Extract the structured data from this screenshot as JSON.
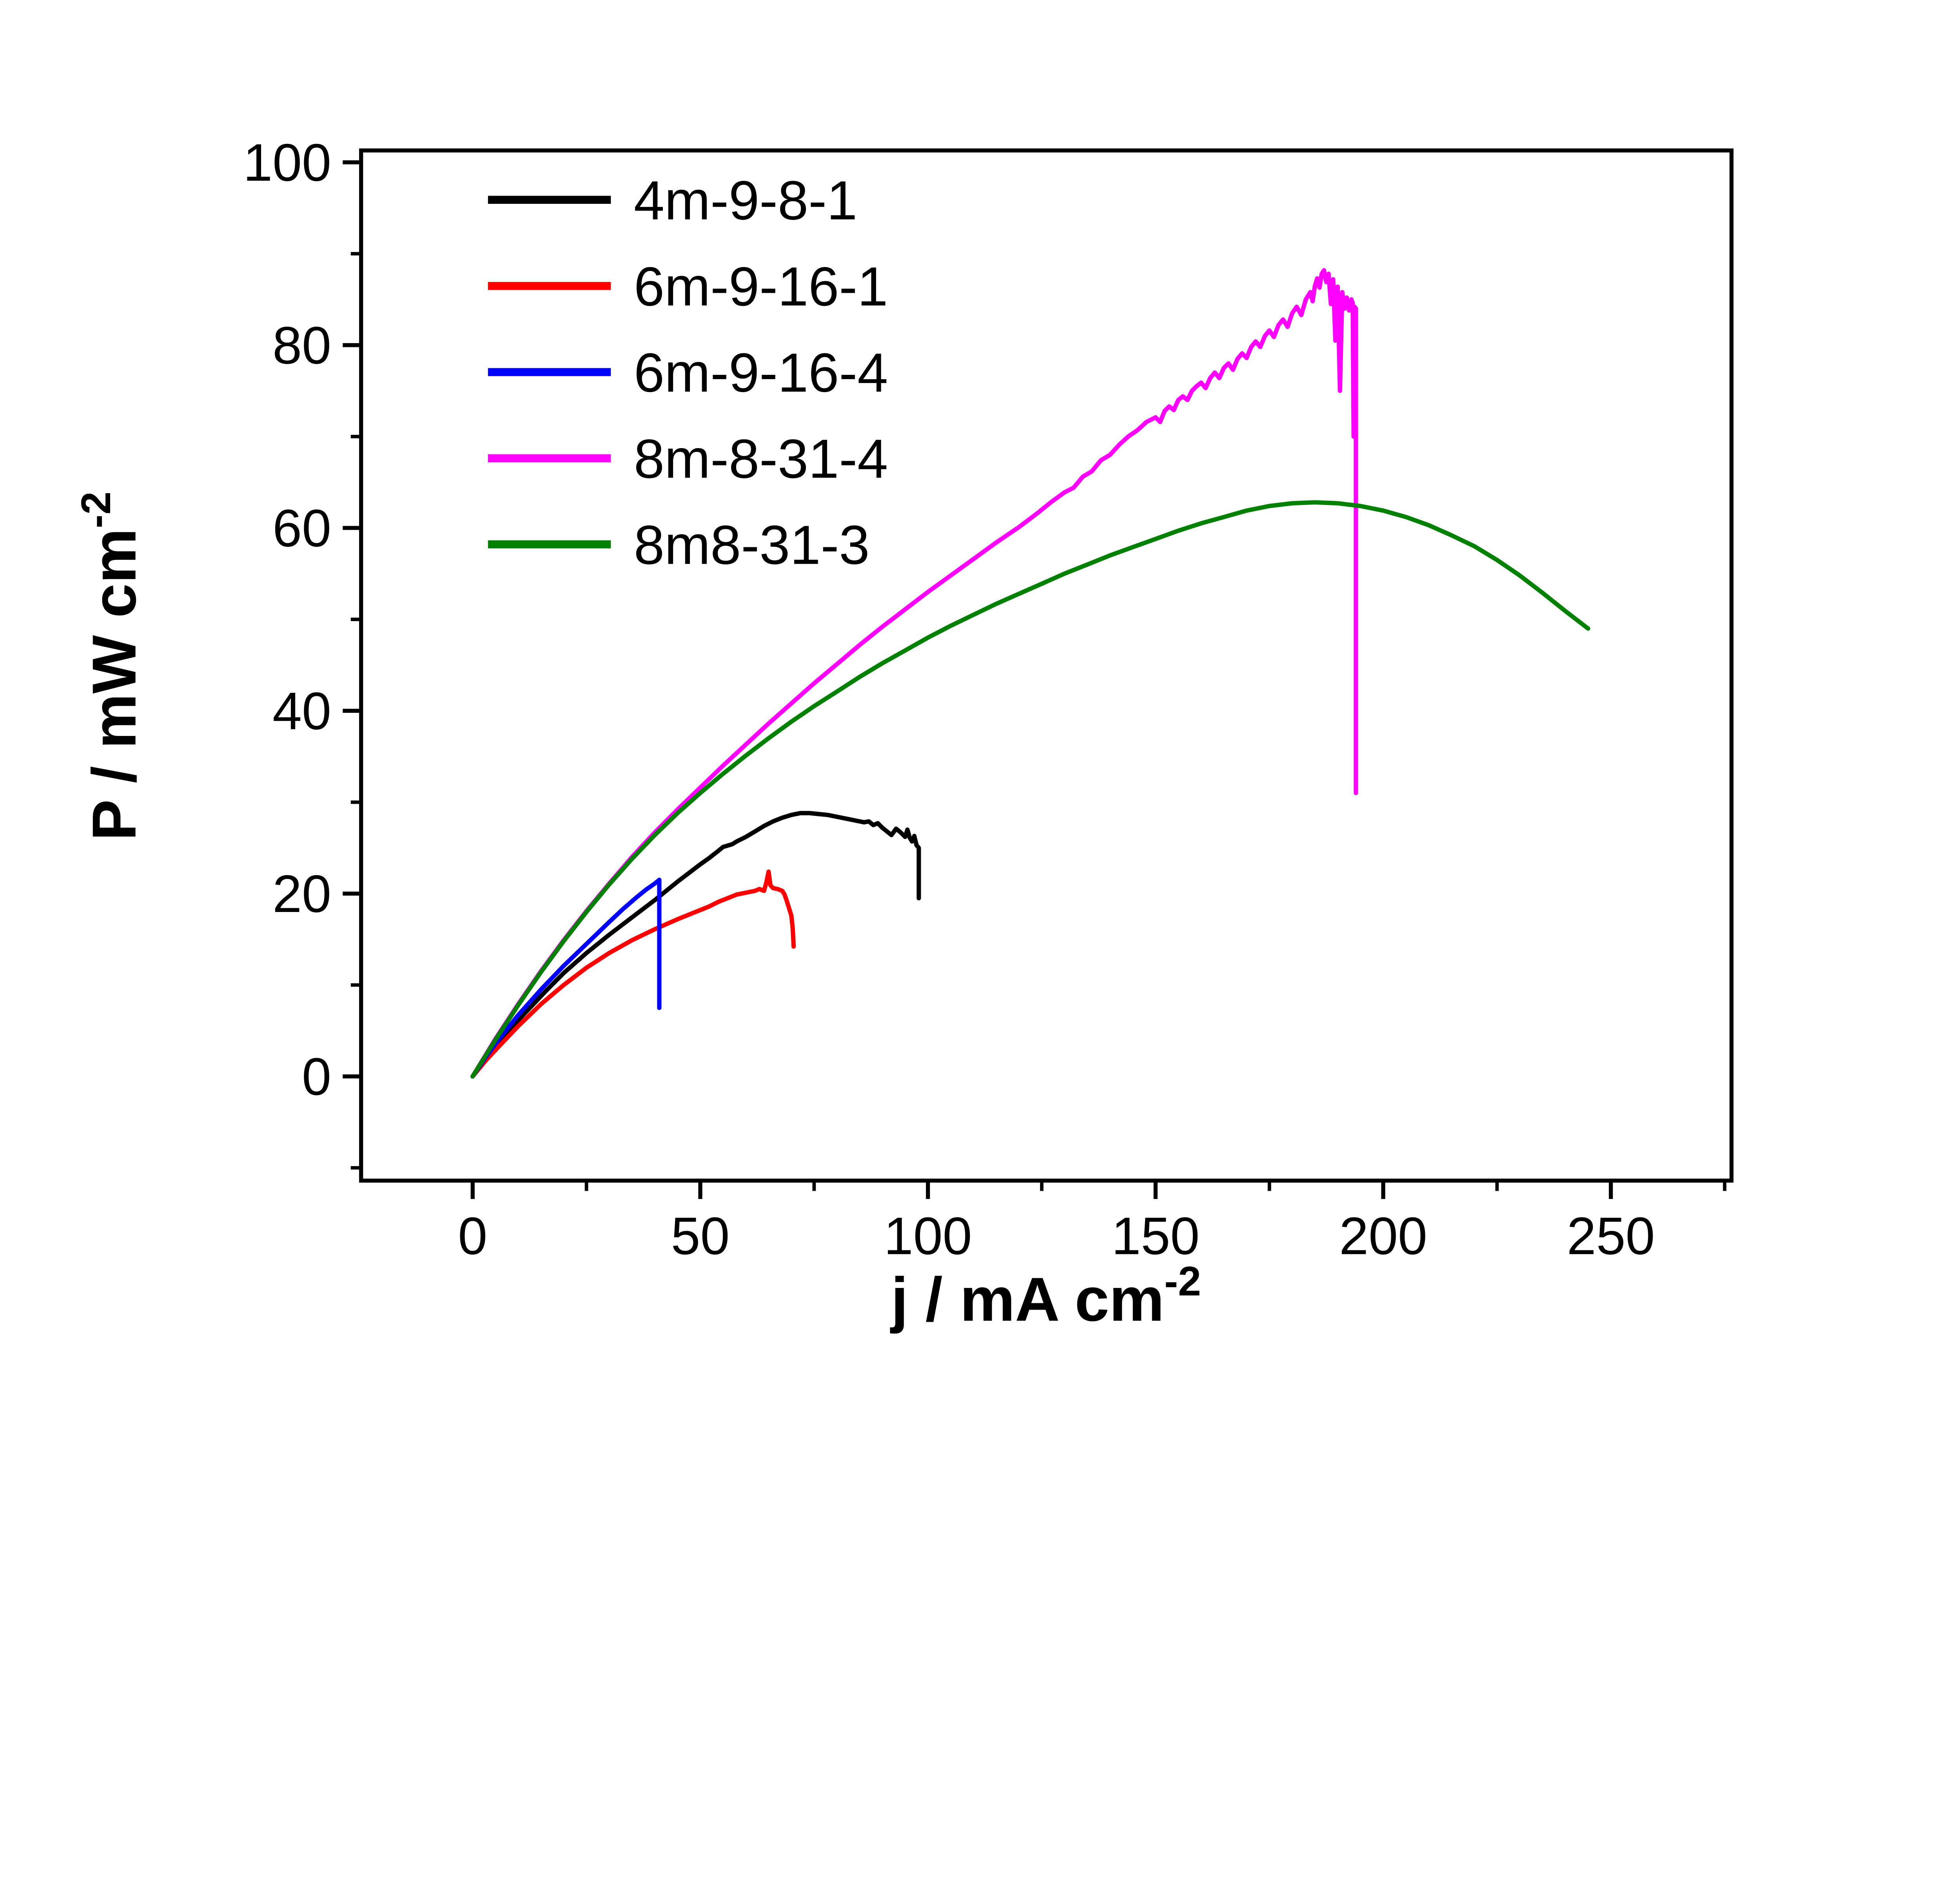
{
  "chart_data": {
    "type": "line",
    "title": "",
    "xlabel_main": "j / mA cm",
    "xlabel_sup": "-2",
    "ylabel_main": "P / mW cm",
    "ylabel_sup": "-2",
    "xlim": [
      -24.5,
      276.5
    ],
    "ylim": [
      -11.4,
      101.3
    ],
    "x_major_ticks": [
      0,
      50,
      100,
      150,
      200,
      250
    ],
    "x_minor_step": 25,
    "y_major_ticks": [
      0,
      20,
      40,
      60,
      80,
      100
    ],
    "y_minor_step": 10,
    "grid": false,
    "legend_position": "upper-left-inside",
    "axis_color": "#000000",
    "series": [
      {
        "name": "4m-9-8-1",
        "color": "#000000",
        "points": [
          [
            0,
            0
          ],
          [
            2,
            1.4
          ],
          [
            5,
            3.3
          ],
          [
            8,
            5.1
          ],
          [
            12,
            7.2
          ],
          [
            16,
            9.3
          ],
          [
            20,
            11.3
          ],
          [
            25,
            13.5
          ],
          [
            30,
            15.5
          ],
          [
            35,
            17.4
          ],
          [
            40,
            19.3
          ],
          [
            45,
            21.3
          ],
          [
            50,
            23.2
          ],
          [
            52,
            23.9
          ],
          [
            54,
            24.7
          ],
          [
            55,
            25.1
          ],
          [
            57,
            25.4
          ],
          [
            58,
            25.7
          ],
          [
            60,
            26.2
          ],
          [
            62,
            26.8
          ],
          [
            64,
            27.4
          ],
          [
            66,
            27.9
          ],
          [
            68,
            28.3
          ],
          [
            70,
            28.6
          ],
          [
            72,
            28.8
          ],
          [
            74,
            28.8
          ],
          [
            76,
            28.7
          ],
          [
            78,
            28.6
          ],
          [
            80,
            28.4
          ],
          [
            82,
            28.2
          ],
          [
            84,
            28.0
          ],
          [
            86,
            27.8
          ],
          [
            87,
            27.9
          ],
          [
            88,
            27.5
          ],
          [
            89,
            27.7
          ],
          [
            90,
            27.2
          ],
          [
            91,
            26.8
          ],
          [
            92,
            26.4
          ],
          [
            93,
            27.1
          ],
          [
            94,
            26.7
          ],
          [
            95,
            26.2
          ],
          [
            95.5,
            27.0
          ],
          [
            96,
            26.1
          ],
          [
            96.5,
            25.7
          ],
          [
            97,
            26.3
          ],
          [
            97.5,
            25.3
          ],
          [
            98,
            25.0
          ],
          [
            98,
            19.5
          ]
        ]
      },
      {
        "name": "6m-9-16-1",
        "color": "#ff0000",
        "points": [
          [
            0,
            0
          ],
          [
            3,
            1.8
          ],
          [
            6,
            3.4
          ],
          [
            10,
            5.5
          ],
          [
            15,
            7.9
          ],
          [
            20,
            10.0
          ],
          [
            25,
            11.9
          ],
          [
            30,
            13.5
          ],
          [
            35,
            14.9
          ],
          [
            40,
            16.1
          ],
          [
            45,
            17.2
          ],
          [
            50,
            18.2
          ],
          [
            52,
            18.6
          ],
          [
            54,
            19.1
          ],
          [
            56,
            19.5
          ],
          [
            58,
            19.9
          ],
          [
            60,
            20.1
          ],
          [
            61,
            20.2
          ],
          [
            62,
            20.3
          ],
          [
            63,
            20.5
          ],
          [
            64,
            20.3
          ],
          [
            64.5,
            21.2
          ],
          [
            65,
            22.4
          ],
          [
            65.4,
            20.9
          ],
          [
            66,
            20.6
          ],
          [
            67,
            20.5
          ],
          [
            68,
            20.3
          ],
          [
            68.5,
            19.9
          ],
          [
            69,
            19.2
          ],
          [
            69.5,
            18.4
          ],
          [
            70,
            17.6
          ],
          [
            70.3,
            16.2
          ],
          [
            70.5,
            14.2
          ]
        ]
      },
      {
        "name": "6m-9-16-4",
        "color": "#0000ff",
        "points": [
          [
            0,
            0
          ],
          [
            3,
            2.2
          ],
          [
            6,
            4.2
          ],
          [
            10,
            6.7
          ],
          [
            15,
            9.5
          ],
          [
            20,
            12.1
          ],
          [
            25,
            14.5
          ],
          [
            30,
            16.9
          ],
          [
            33,
            18.3
          ],
          [
            36,
            19.6
          ],
          [
            38,
            20.4
          ],
          [
            40,
            21.1
          ],
          [
            41,
            21.5
          ],
          [
            41,
            7.5
          ]
        ]
      },
      {
        "name": "8m-8-31-4",
        "color": "#ff00ff",
        "points": [
          [
            0,
            0
          ],
          [
            5,
            4.1
          ],
          [
            10,
            7.9
          ],
          [
            15,
            11.5
          ],
          [
            20,
            14.9
          ],
          [
            25,
            18.1
          ],
          [
            30,
            21.1
          ],
          [
            35,
            24.0
          ],
          [
            40,
            26.7
          ],
          [
            45,
            29.2
          ],
          [
            50,
            31.6
          ],
          [
            55,
            34.0
          ],
          [
            60,
            36.3
          ],
          [
            65,
            38.6
          ],
          [
            70,
            40.8
          ],
          [
            75,
            43.0
          ],
          [
            80,
            45.1
          ],
          [
            85,
            47.2
          ],
          [
            90,
            49.2
          ],
          [
            95,
            51.1
          ],
          [
            100,
            53.0
          ],
          [
            105,
            54.8
          ],
          [
            110,
            56.6
          ],
          [
            115,
            58.4
          ],
          [
            120,
            60.1
          ],
          [
            124,
            61.6
          ],
          [
            127,
            62.8
          ],
          [
            130,
            63.9
          ],
          [
            132,
            64.4
          ],
          [
            134,
            65.6
          ],
          [
            136,
            66.2
          ],
          [
            138,
            67.4
          ],
          [
            140,
            68.0
          ],
          [
            142,
            69.1
          ],
          [
            144,
            70.0
          ],
          [
            146,
            70.7
          ],
          [
            148,
            71.6
          ],
          [
            150,
            72.1
          ],
          [
            151,
            71.6
          ],
          [
            152,
            72.8
          ],
          [
            153,
            73.3
          ],
          [
            154,
            72.9
          ],
          [
            155,
            74.0
          ],
          [
            156,
            74.4
          ],
          [
            157,
            74.0
          ],
          [
            158,
            75.0
          ],
          [
            159,
            75.5
          ],
          [
            160,
            75.9
          ],
          [
            161,
            75.3
          ],
          [
            162,
            76.4
          ],
          [
            163,
            77.0
          ],
          [
            164,
            76.4
          ],
          [
            165,
            77.5
          ],
          [
            166,
            78.0
          ],
          [
            167,
            77.3
          ],
          [
            168,
            78.5
          ],
          [
            169,
            79.1
          ],
          [
            170,
            78.6
          ],
          [
            171,
            79.8
          ],
          [
            172,
            80.4
          ],
          [
            173,
            79.8
          ],
          [
            174,
            81.0
          ],
          [
            175,
            81.6
          ],
          [
            176,
            80.9
          ],
          [
            177,
            82.2
          ],
          [
            178,
            82.8
          ],
          [
            179,
            82.0
          ],
          [
            180,
            83.5
          ],
          [
            181,
            84.2
          ],
          [
            182,
            83.3
          ],
          [
            183,
            85.0
          ],
          [
            184,
            85.8
          ],
          [
            184.5,
            84.8
          ],
          [
            185,
            86.5
          ],
          [
            185.5,
            87.3
          ],
          [
            186,
            86.3
          ],
          [
            186.5,
            87.8
          ],
          [
            187,
            88.2
          ],
          [
            187.5,
            86.9
          ],
          [
            188,
            87.8
          ],
          [
            188.5,
            84.5
          ],
          [
            189,
            87.2
          ],
          [
            189.5,
            80.5
          ],
          [
            190,
            86.4
          ],
          [
            190.5,
            75.0
          ],
          [
            191,
            85.8
          ],
          [
            191.5,
            84.0
          ],
          [
            192,
            85.2
          ],
          [
            192.5,
            83.8
          ],
          [
            193,
            85.0
          ],
          [
            193.3,
            84.6
          ],
          [
            193.5,
            70.0
          ],
          [
            193.7,
            84.2
          ],
          [
            194,
            84.0
          ],
          [
            194,
            31.0
          ]
        ]
      },
      {
        "name": "8m8-31-3",
        "color": "#008000",
        "points": [
          [
            0,
            0
          ],
          [
            5,
            4.0
          ],
          [
            10,
            7.8
          ],
          [
            15,
            11.4
          ],
          [
            20,
            14.8
          ],
          [
            25,
            18.0
          ],
          [
            30,
            21.0
          ],
          [
            35,
            23.8
          ],
          [
            40,
            26.4
          ],
          [
            45,
            28.8
          ],
          [
            50,
            31.0
          ],
          [
            55,
            33.1
          ],
          [
            60,
            35.1
          ],
          [
            65,
            37.0
          ],
          [
            70,
            38.8
          ],
          [
            75,
            40.5
          ],
          [
            80,
            42.1
          ],
          [
            85,
            43.7
          ],
          [
            90,
            45.2
          ],
          [
            95,
            46.6
          ],
          [
            100,
            48.0
          ],
          [
            105,
            49.3
          ],
          [
            110,
            50.5
          ],
          [
            115,
            51.7
          ],
          [
            120,
            52.8
          ],
          [
            125,
            53.9
          ],
          [
            130,
            55.0
          ],
          [
            135,
            56.0
          ],
          [
            140,
            57.0
          ],
          [
            145,
            57.9
          ],
          [
            150,
            58.8
          ],
          [
            155,
            59.7
          ],
          [
            160,
            60.5
          ],
          [
            165,
            61.2
          ],
          [
            170,
            61.9
          ],
          [
            175,
            62.4
          ],
          [
            180,
            62.7
          ],
          [
            185,
            62.8
          ],
          [
            190,
            62.7
          ],
          [
            195,
            62.4
          ],
          [
            200,
            61.9
          ],
          [
            205,
            61.2
          ],
          [
            210,
            60.3
          ],
          [
            215,
            59.2
          ],
          [
            220,
            58.0
          ],
          [
            225,
            56.5
          ],
          [
            230,
            54.8
          ],
          [
            235,
            52.9
          ],
          [
            240,
            50.9
          ],
          [
            245,
            49.0
          ]
        ]
      }
    ]
  }
}
